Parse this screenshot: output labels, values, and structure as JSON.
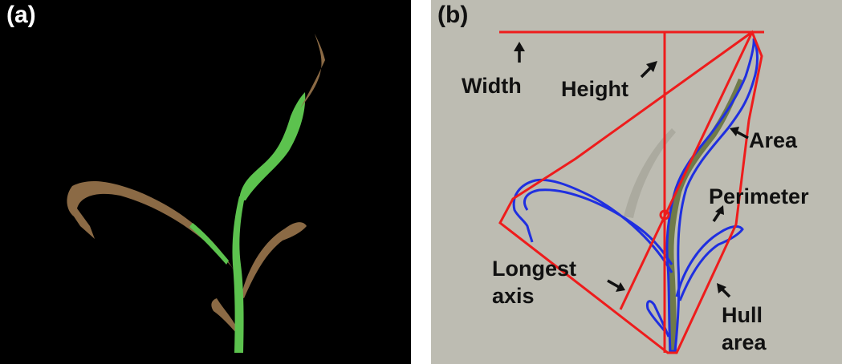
{
  "panel_a": {
    "label": "(a)"
  },
  "panel_b": {
    "label": "(b)",
    "annotations": {
      "width": "Width",
      "height": "Height",
      "area": "Area",
      "perimeter": "Perimeter",
      "longest": "Longest",
      "axis": "axis",
      "hull": "Hull",
      "hull_area": "area"
    }
  },
  "colors": {
    "leaf_green": "#5cc24e",
    "leaf_brown": "#8b6a45",
    "contour_blue": "#1f2fe0",
    "measure_red": "#ee1c1c",
    "background_b": "#bdbcb2"
  }
}
